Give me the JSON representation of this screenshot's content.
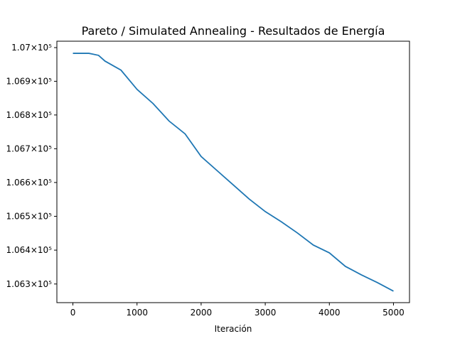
{
  "chart_data": {
    "type": "line",
    "title": "Pareto / Simulated Annealing - Resultados de Energía",
    "xlabel": "Iteración",
    "x": [
      0,
      250,
      400,
      500,
      750,
      1000,
      1250,
      1500,
      1750,
      2000,
      2250,
      2500,
      2750,
      3000,
      3250,
      3500,
      3750,
      4000,
      4250,
      4500,
      4750,
      5000
    ],
    "series": [
      {
        "color": "#1f77b4",
        "values": [
          106983,
          106983,
          106977,
          106960,
          106933,
          106876,
          106834,
          106782,
          106744,
          106677,
          106635,
          106593,
          106551,
          106514,
          106484,
          106451,
          106415,
          106392,
          106352,
          106327,
          106304,
          106279
        ]
      }
    ],
    "xlim": [
      -250,
      5250
    ],
    "xticks": [
      0,
      1000,
      2000,
      3000,
      4000,
      5000
    ],
    "ylim": [
      106245,
      107019
    ],
    "yscale": "log",
    "yticks": [
      {
        "value": 106300,
        "label": "1.063×10⁵"
      },
      {
        "value": 106400,
        "label": "1.064×10⁵"
      },
      {
        "value": 106500,
        "label": "1.065×10⁵"
      },
      {
        "value": 106600,
        "label": "1.066×10⁵"
      },
      {
        "value": 106700,
        "label": "1.067×10⁵"
      },
      {
        "value": 106800,
        "label": "1.068×10⁵"
      },
      {
        "value": 106900,
        "label": "1.069×10⁵"
      },
      {
        "value": 107000,
        "label": "1.07×10⁵"
      }
    ]
  }
}
